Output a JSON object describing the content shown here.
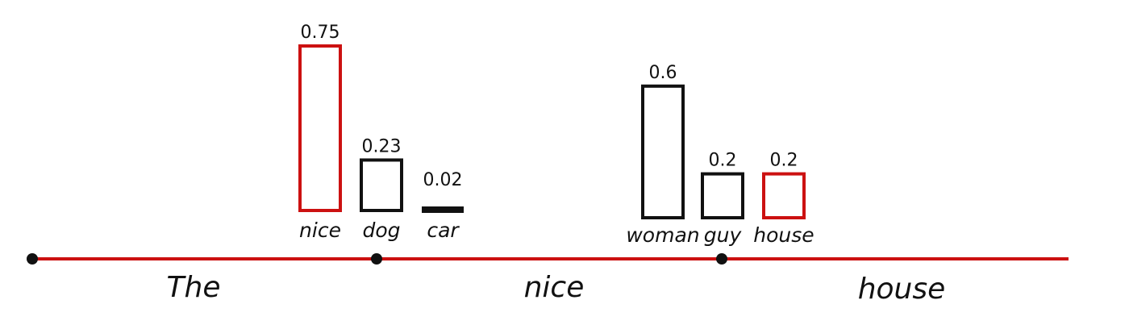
{
  "colors": {
    "timeline": "#cc1111",
    "selected": "#cc1111",
    "unselected": "#111111",
    "node": "#111111"
  },
  "tokens": [
    "The",
    "nice",
    "house"
  ],
  "steps": [
    {
      "candidates": [
        {
          "word": "nice",
          "prob": 0.75,
          "prob_label": "0.75",
          "selected": true
        },
        {
          "word": "dog",
          "prob": 0.23,
          "prob_label": "0.23",
          "selected": false
        },
        {
          "word": "car",
          "prob": 0.02,
          "prob_label": "0.02",
          "selected": false
        }
      ]
    },
    {
      "candidates": [
        {
          "word": "woman",
          "prob": 0.6,
          "prob_label": "0.6",
          "selected": false
        },
        {
          "word": "guy",
          "prob": 0.2,
          "prob_label": "0.2",
          "selected": false
        },
        {
          "word": "house",
          "prob": 0.2,
          "prob_label": "0.2",
          "selected": true
        }
      ]
    }
  ]
}
